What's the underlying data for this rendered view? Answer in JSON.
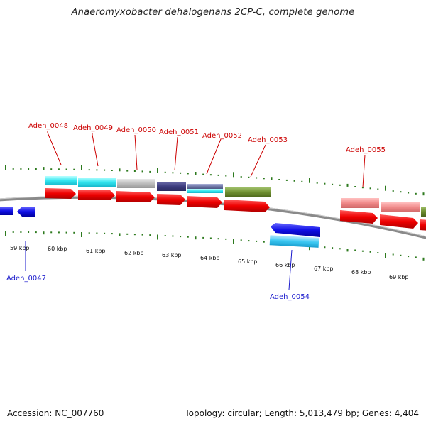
{
  "title": "Anaeromyxobacter dehalogenans 2CP-C, complete genome",
  "footer": {
    "accession": "Accession: NC_007760",
    "summary": "Topology: circular; Length: 5,013,479 bp; Genes: 4,404"
  },
  "scale": {
    "labels": [
      "59 kbp",
      "60 kbp",
      "61 kbp",
      "62 kbp",
      "63 kbp",
      "64 kbp",
      "65 kbp",
      "66 kbp",
      "67 kbp",
      "68 kbp",
      "69 kbp"
    ]
  },
  "colors": {
    "forward_label": "#cc0000",
    "reverse_label": "#1a1acc",
    "tick": "#2d7a1e",
    "cds": "#ee0000",
    "backbone": "#888888"
  },
  "genes_top": [
    "Adeh_0048",
    "Adeh_0049",
    "Adeh_0050",
    "Adeh_0051",
    "Adeh_0052",
    "Adeh_0053",
    "Adeh_0055"
  ],
  "genes_bottom": [
    "Adeh_0047",
    "Adeh_0054"
  ]
}
